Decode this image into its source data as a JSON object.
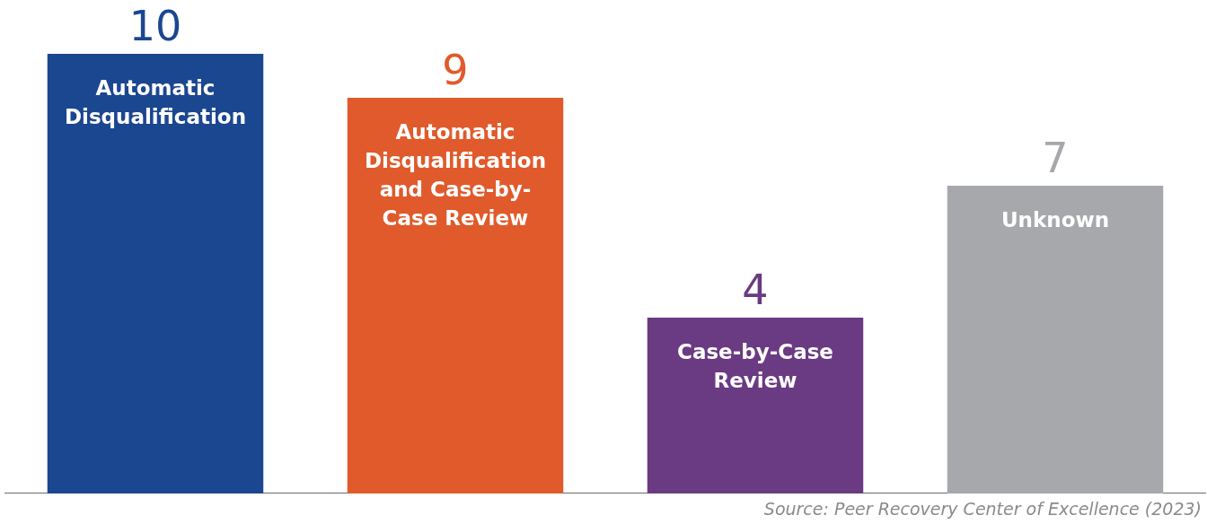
{
  "chart_data": {
    "type": "bar",
    "categories": [
      "Automatic Disqualification",
      "Automatic Disqualification and Case-by-Case Review",
      "Case-by-Case Review",
      "Unknown"
    ],
    "values": [
      10,
      9,
      4,
      7
    ],
    "colors": [
      "#1b4690",
      "#e05a2b",
      "#6a3a82",
      "#a7a8ab"
    ],
    "data_labels": true,
    "grid": false,
    "legend": false,
    "annotations": [
      "Source: Peer Recovery Center of Excellence (2023)"
    ]
  }
}
